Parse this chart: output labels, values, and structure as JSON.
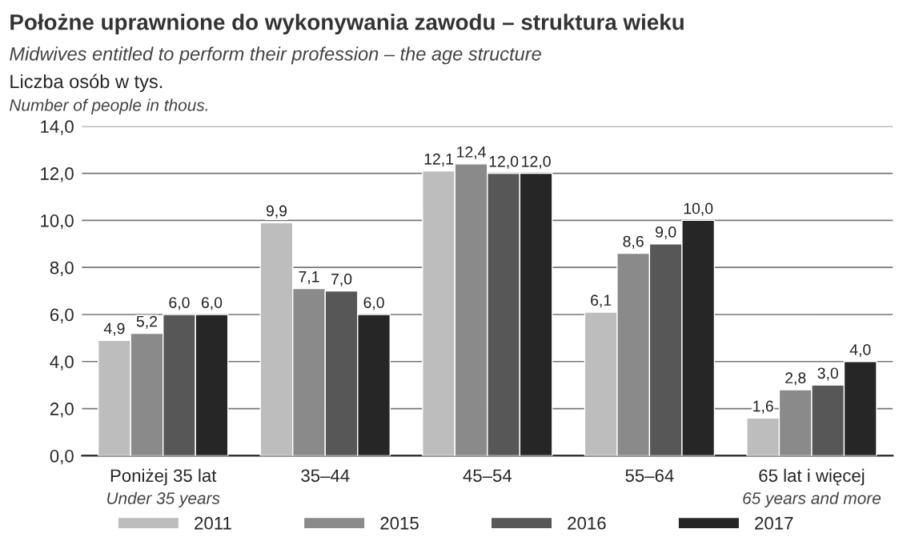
{
  "chart_data": {
    "type": "bar",
    "title": "Położne uprawnione do wykonywania zawodu – struktura wieku",
    "subtitle": "Midwives entitled to perform their profession – the age structure",
    "ylabel": "Liczba osób w tys.\nNumber of people in thous.",
    "categories": [
      "Poniżej 35 lat\nUnder 35 years",
      "35–44",
      "45–54",
      "55–64",
      "65 lat i więcej\n65 years and more"
    ],
    "series": [
      {
        "name": "2011",
        "color": "#bdbdbd",
        "values": [
          4.9,
          9.9,
          12.1,
          6.1,
          1.6
        ],
        "value_labels": [
          "4,9",
          "9,9",
          "12,1",
          "6,1",
          "1,6"
        ]
      },
      {
        "name": "2015",
        "color": "#8a8a8a",
        "values": [
          5.2,
          7.1,
          12.4,
          8.6,
          2.8
        ],
        "value_labels": [
          "5,2",
          "7,1",
          "12,4",
          "8,6",
          "2,8"
        ]
      },
      {
        "name": "2016",
        "color": "#575757",
        "values": [
          6.0,
          7.0,
          12.0,
          9.0,
          3.0
        ],
        "value_labels": [
          "6,0",
          "7,0",
          "12,0",
          "9,0",
          "3,0"
        ]
      },
      {
        "name": "2017",
        "color": "#262626",
        "values": [
          6.0,
          6.0,
          12.0,
          10.0,
          4.0
        ],
        "value_labels": [
          "6,0",
          "6,0",
          "12,0",
          "10,0",
          "4,0"
        ]
      }
    ],
    "ylim": [
      0,
      14
    ],
    "yticks": [
      {
        "value": 0,
        "label": "0,0"
      },
      {
        "value": 2,
        "label": "2,0"
      },
      {
        "value": 4,
        "label": "4,0"
      },
      {
        "value": 6,
        "label": "6,0"
      },
      {
        "value": 8,
        "label": "8,0"
      },
      {
        "value": 10,
        "label": "10,0"
      },
      {
        "value": 12,
        "label": "12,0"
      },
      {
        "value": 14,
        "label": "14,0"
      }
    ],
    "grid": "y",
    "legend": "bottom"
  }
}
